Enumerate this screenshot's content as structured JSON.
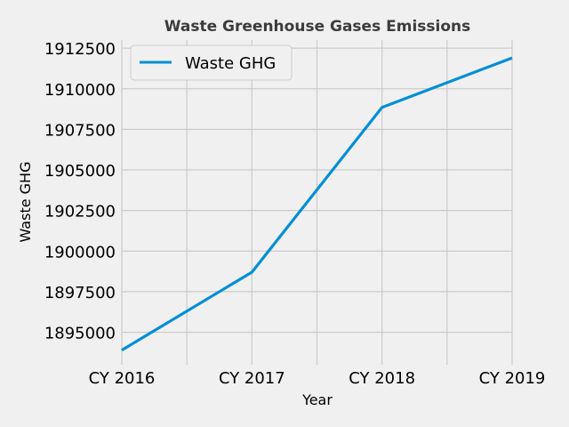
{
  "chart_data": {
    "type": "line",
    "title": "Waste Greenhouse Gases Emissions",
    "xlabel": "Year",
    "ylabel": "Waste GHG",
    "categories": [
      "CY 2016",
      "CY 2017",
      "CY 2018",
      "CY 2019"
    ],
    "series": [
      {
        "name": "Waste GHG",
        "values": [
          1893900,
          1898700,
          1908850,
          1911900
        ],
        "color": "#008fd5"
      }
    ],
    "yticks": [
      1895000,
      1897500,
      1900000,
      1902500,
      1905000,
      1907500,
      1910000,
      1912500
    ],
    "ytick_labels": [
      "1895000",
      "1897500",
      "1900000",
      "1902500",
      "1905000",
      "1907500",
      "1910000",
      "1912500"
    ],
    "ylim": [
      1893000,
      1913000
    ],
    "grid": true,
    "legend_position": "upper left",
    "colors": {
      "background": "#f0f0f0",
      "grid": "#cbcbcb",
      "line": "#008fd5"
    }
  }
}
